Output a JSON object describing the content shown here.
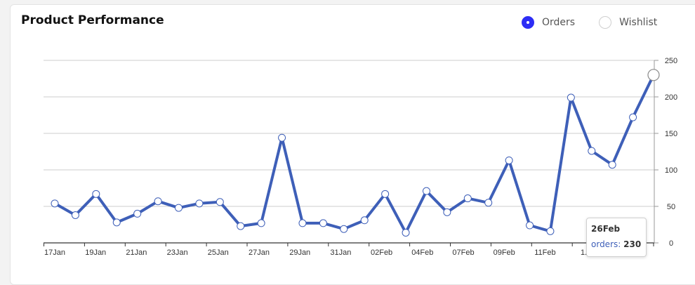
{
  "card": {
    "title": "Product Performance"
  },
  "legend": [
    {
      "label": "Orders",
      "selected": true
    },
    {
      "label": "Wishlist",
      "selected": false
    }
  ],
  "colors": {
    "series": "#3e5fb8",
    "selected_radio": "#2d2df5",
    "grid": "#cccccc"
  },
  "chart_data": {
    "type": "line",
    "x_labels": [
      "17Jan",
      "19Jan",
      "21Jan",
      "23Jan",
      "25Jan",
      "27Jan",
      "29Jan",
      "31Jan",
      "02Feb",
      "04Feb",
      "07Feb",
      "09Feb",
      "11Feb",
      "1..."
    ],
    "series": [
      {
        "name": "Orders",
        "values": [
          54,
          38,
          67,
          28,
          40,
          57,
          48,
          54,
          56,
          23,
          27,
          144,
          27,
          27,
          19,
          31,
          67,
          14,
          71,
          42,
          61,
          55,
          113,
          24,
          16,
          199,
          126,
          107,
          172,
          230
        ]
      }
    ],
    "ylim": [
      0,
      250
    ],
    "yticks": [
      0,
      50,
      100,
      150,
      200,
      250
    ],
    "y_axis_position": "right",
    "grid": true,
    "highlight_index": 29
  },
  "tooltip": {
    "date": "26Feb",
    "key": "orders:",
    "value": "230"
  }
}
